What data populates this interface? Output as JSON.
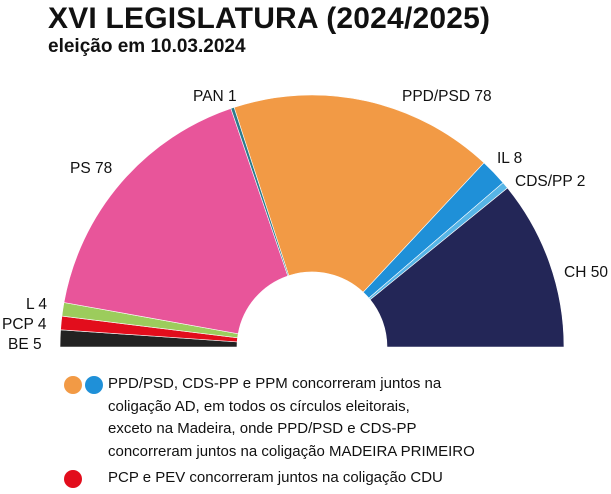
{
  "title": "XVI LEGISLATURA (2024/2025)",
  "subtitle": "eleição em 10.03.2024",
  "chart_data": {
    "type": "pie",
    "variant": "parliament-semicircle",
    "total_seats": 230,
    "parties": [
      {
        "name": "BE",
        "seats": 5,
        "label": "BE 5",
        "color": "#222222"
      },
      {
        "name": "PCP",
        "seats": 4,
        "label": "PCP 4",
        "color": "#e20d1c"
      },
      {
        "name": "L",
        "seats": 4,
        "label": "L 4",
        "color": "#9ccc5c"
      },
      {
        "name": "PS",
        "seats": 78,
        "label": "PS 78",
        "color": "#e8559a"
      },
      {
        "name": "PAN",
        "seats": 1,
        "label": "PAN 1",
        "color": "#2b7b8c"
      },
      {
        "name": "PPD/PSD",
        "seats": 78,
        "label": "PPD/PSD 78",
        "color": "#f29a45"
      },
      {
        "name": "IL",
        "seats": 8,
        "label": "IL 8",
        "color": "#1f90d8"
      },
      {
        "name": "CDS/PP",
        "seats": 2,
        "label": "CDS/PP 2",
        "color": "#57b5e6"
      },
      {
        "name": "CH",
        "seats": 50,
        "label": "CH 50",
        "color": "#232657"
      }
    ]
  },
  "notes": [
    {
      "text": "PPD/PSD, CDS-PP e PPM concorreram juntos na\ncoligação AD, em todos os círculos eleitorais,\nexceto na Madeira, onde PPD/PSD e CDS-PP\nconcorreram juntos na coligação MADEIRA PRIMEIRO",
      "dot_colors": [
        "#f29a45",
        "#1f90d8"
      ]
    },
    {
      "text": "PCP e PEV concorreram juntos na coligação CDU",
      "dot_colors": [
        "#e20d1c"
      ]
    }
  ]
}
